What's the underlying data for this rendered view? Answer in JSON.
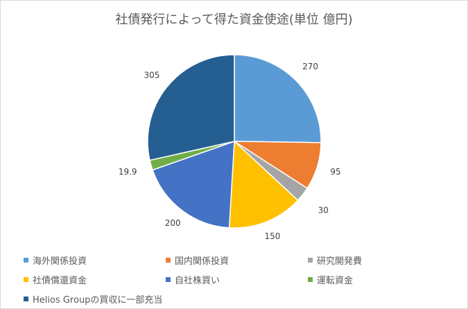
{
  "chart_data": {
    "type": "pie",
    "title": "社債発行によって得た資金使途(単位 億円)",
    "categories": [
      "海外関係投資",
      "国内関係投資",
      "研究開発費",
      "社債償還資金",
      "自社株買い",
      "運転資金",
      "Helios Groupの買収に一部充当"
    ],
    "values": [
      270,
      95,
      30,
      150,
      200,
      19.9,
      305
    ],
    "data_labels": [
      "270",
      "95",
      "30",
      "150",
      "200",
      "19.9",
      "305"
    ],
    "colors": [
      "#5b9bd5",
      "#ed7d31",
      "#a5a5a5",
      "#ffc000",
      "#4472c4",
      "#70ad47",
      "#255e91"
    ],
    "legend_position": "bottom"
  }
}
